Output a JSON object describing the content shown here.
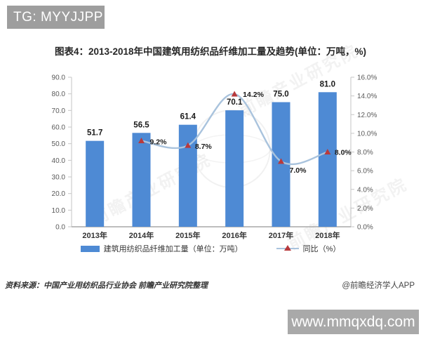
{
  "header": {
    "badge": "TG: MYYJJPP"
  },
  "title": "图表4：2013-2018年中国建筑用纺织品纤维加工量及趋势(单位：万吨，%)",
  "chart_data": {
    "type": "bar",
    "categories": [
      "2013年",
      "2014年",
      "2015年",
      "2016年",
      "2017年",
      "2018年"
    ],
    "series": [
      {
        "name": "建筑用纺织品纤维加工量（单位：万吨）",
        "type": "bar",
        "axis": "left",
        "values": [
          51.7,
          56.5,
          61.4,
          70.1,
          75.0,
          81.0
        ],
        "color": "#4e8ad4"
      },
      {
        "name": "同比（%）",
        "type": "line",
        "axis": "right",
        "values": [
          null,
          9.2,
          8.7,
          14.2,
          7.0,
          8.0
        ],
        "color": "#a9c3dd",
        "marker_color": "#b8393c"
      }
    ],
    "left_axis": {
      "min": 0,
      "max": 90,
      "step": 10,
      "suffix": ""
    },
    "right_axis": {
      "min": 0,
      "max": 16,
      "step": 2,
      "suffix": "%"
    },
    "grid": false,
    "legend_position": "bottom",
    "title": "图表4：2013-2018年中国建筑用纺织品纤维加工量及趋势(单位：万吨，%)"
  },
  "legend": {
    "bar_label": "建筑用纺织品纤维加工量（单位：万吨）",
    "line_label": "同比（%）"
  },
  "footer": {
    "source": "资料来源：中国产业用纺织品行业协会 前瞻产业研究院整理",
    "credit": "@前瞻经济学人APP"
  },
  "watermark": {
    "diagonal": "前瞻产业研究院",
    "url": "www.mmqxdq.com"
  }
}
